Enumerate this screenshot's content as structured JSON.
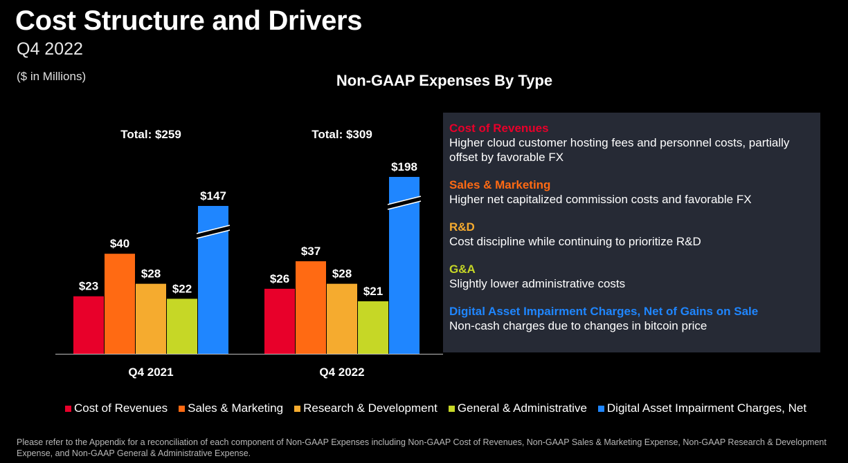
{
  "header": {
    "title": "Cost Structure and Drivers",
    "subtitle": "Q4 2022",
    "units": "($ in Millions)"
  },
  "chart_data": {
    "type": "bar",
    "title": "Non-GAAP Expenses By Type",
    "categories": [
      "Q4 2021",
      "Q4 2022"
    ],
    "totals": [
      "Total: $259",
      "Total: $309"
    ],
    "series": [
      {
        "name": "Cost of Revenues",
        "color": "#e8002a",
        "values": [
          23,
          26
        ],
        "labels": [
          "$23",
          "$26"
        ]
      },
      {
        "name": "Sales & Marketing",
        "color": "#ff6a13",
        "values": [
          40,
          37
        ],
        "labels": [
          "$40",
          "$37"
        ]
      },
      {
        "name": "Research & Development",
        "color": "#f5ab2f",
        "values": [
          28,
          28
        ],
        "labels": [
          "$28",
          "$28"
        ]
      },
      {
        "name": "General & Administrative",
        "color": "#c6d726",
        "values": [
          22,
          21
        ],
        "labels": [
          "$22",
          "$21"
        ]
      },
      {
        "name": "Digital Asset Impairment Charges, Net",
        "color": "#1f86ff",
        "values": [
          147,
          198
        ],
        "labels": [
          "$147",
          "$198"
        ],
        "axis_break": true
      }
    ],
    "xlabel": "",
    "ylabel": "",
    "legend": "bottom"
  },
  "drivers": [
    {
      "heading": "Cost of Revenues",
      "color": "#e8002a",
      "text": "Higher cloud customer hosting fees and personnel costs, partially offset by favorable FX"
    },
    {
      "heading": "Sales & Marketing",
      "color": "#ff6a13",
      "text": "Higher net capitalized commission costs and favorable FX"
    },
    {
      "heading": "R&D",
      "color": "#f5ab2f",
      "text": "Cost discipline while continuing to prioritize R&D"
    },
    {
      "heading": "G&A",
      "color": "#c6d726",
      "text": "Slightly lower administrative costs"
    },
    {
      "heading": "Digital Asset Impairment Charges, Net of Gains on Sale",
      "color": "#1f86ff",
      "text": "Non-cash charges due to changes in bitcoin price"
    }
  ],
  "footnote": "Please refer to the Appendix for a reconciliation of each component of Non-GAAP Expenses including Non-GAAP Cost of Revenues, Non-GAAP Sales & Marketing Expense, Non-GAAP Research & Development Expense, and Non-GAAP General & Administrative Expense."
}
